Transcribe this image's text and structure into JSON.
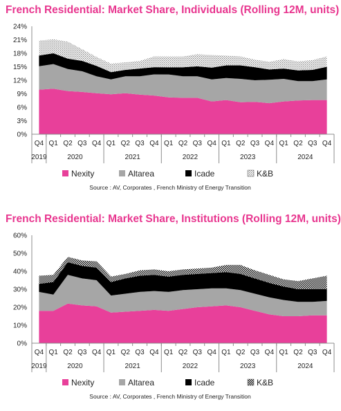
{
  "chart_data": [
    {
      "type": "area",
      "stacked": true,
      "title": "French Residential: Market Share, Individuals (Rolling 12M, units)",
      "quarters": [
        "Q4",
        "Q1",
        "Q2",
        "Q3",
        "Q4",
        "Q1",
        "Q2",
        "Q3",
        "Q4",
        "Q1",
        "Q2",
        "Q3",
        "Q4",
        "Q1",
        "Q2",
        "Q3",
        "Q4",
        "Q1",
        "Q2",
        "Q3",
        "Q4"
      ],
      "years": [
        {
          "label": "2019",
          "span": [
            0,
            0
          ]
        },
        {
          "label": "2020",
          "span": [
            1,
            4
          ]
        },
        {
          "label": "2021",
          "span": [
            5,
            8
          ]
        },
        {
          "label": "2022",
          "span": [
            9,
            12
          ]
        },
        {
          "label": "2023",
          "span": [
            13,
            16
          ]
        },
        {
          "label": "2024",
          "span": [
            17,
            20
          ]
        }
      ],
      "yticks": [
        "0%",
        "3%",
        "6%",
        "9%",
        "12%",
        "15%",
        "18%",
        "21%",
        "24%"
      ],
      "ylim": [
        0,
        24
      ],
      "series": [
        {
          "name": "Nexity",
          "color": "#e8409a",
          "pattern": "solid",
          "values": [
            9.9,
            10.1,
            9.6,
            9.4,
            9.1,
            8.9,
            9.1,
            8.8,
            8.6,
            8.2,
            8.1,
            8.1,
            7.3,
            7.6,
            7.1,
            7.2,
            6.9,
            7.3,
            7.5,
            7.6,
            7.6
          ]
        },
        {
          "name": "Altarea",
          "color": "#a6a6a6",
          "pattern": "solid",
          "values": [
            5.2,
            5.5,
            4.9,
            4.6,
            3.8,
            3.3,
            3.8,
            4.1,
            4.7,
            5.1,
            4.8,
            4.8,
            4.9,
            4.9,
            5.2,
            4.8,
            5.2,
            5.0,
            4.3,
            4.2,
            4.6
          ]
        },
        {
          "name": "Icade",
          "color": "#000000",
          "pattern": "solid",
          "values": [
            2.4,
            2.4,
            2.3,
            2.3,
            2.3,
            1.6,
            1.4,
            1.7,
            1.6,
            1.6,
            2.0,
            2.2,
            2.6,
            2.8,
            3.0,
            2.9,
            2.3,
            2.3,
            2.4,
            2.5,
            2.8
          ]
        },
        {
          "name": "K&B",
          "color": "#d4d4d4",
          "pattern": "dotted",
          "values": [
            3.3,
            3.1,
            3.8,
            2.6,
            2.0,
            1.9,
            1.7,
            1.7,
            2.4,
            2.4,
            2.4,
            2.7,
            2.8,
            2.2,
            2.0,
            1.7,
            1.7,
            2.1,
            2.0,
            2.2,
            2.3
          ]
        }
      ],
      "source": "Source : AV, Corporates , French Ministry of Energy Transition"
    },
    {
      "type": "area",
      "stacked": true,
      "title": "French Residential: Market Share, Institutions (Rolling 12M, units)",
      "quarters": [
        "Q4",
        "Q1",
        "Q2",
        "Q3",
        "Q4",
        "Q1",
        "Q2",
        "Q3",
        "Q4",
        "Q1",
        "Q2",
        "Q3",
        "Q4",
        "Q1",
        "Q2",
        "Q3",
        "Q4",
        "Q1",
        "Q2",
        "Q3",
        "Q4"
      ],
      "years": [
        {
          "label": "2019",
          "span": [
            0,
            0
          ]
        },
        {
          "label": "2020",
          "span": [
            1,
            4
          ]
        },
        {
          "label": "2021",
          "span": [
            5,
            8
          ]
        },
        {
          "label": "2022",
          "span": [
            9,
            12
          ]
        },
        {
          "label": "2023",
          "span": [
            13,
            16
          ]
        },
        {
          "label": "2024",
          "span": [
            17,
            20
          ]
        }
      ],
      "yticks": [
        "0%",
        "10%",
        "20%",
        "30%",
        "40%",
        "50%",
        "60%"
      ],
      "ylim": [
        0,
        60
      ],
      "series": [
        {
          "name": "Nexity",
          "color": "#e8409a",
          "pattern": "solid",
          "values": [
            18,
            18,
            22,
            21,
            20.5,
            17,
            17.5,
            18,
            18.5,
            18,
            19,
            20,
            20.5,
            21,
            20,
            18,
            16,
            15,
            15,
            15.5,
            15.5
          ]
        },
        {
          "name": "Altarea",
          "color": "#a6a6a6",
          "pattern": "solid",
          "values": [
            10.5,
            9,
            16,
            15,
            14.5,
            9.5,
            10,
            10.5,
            10.5,
            10.5,
            10.5,
            10,
            10,
            9.5,
            9.5,
            9.5,
            9.5,
            9,
            8,
            7.5,
            8
          ]
        },
        {
          "name": "Icade",
          "color": "#000000",
          "pattern": "solid",
          "values": [
            4.5,
            7,
            7,
            7,
            7,
            7.5,
            8.5,
            9,
            9,
            8.5,
            8.5,
            8.5,
            8.5,
            9,
            9,
            8.5,
            8,
            7.5,
            7,
            7,
            6.5
          ]
        },
        {
          "name": "K&B",
          "color": "#000000",
          "pattern": "checker",
          "values": [
            4.5,
            4,
            3,
            3,
            3.5,
            3,
            2.5,
            3,
            3,
            3,
            3,
            3,
            3,
            4,
            5,
            4.5,
            4.5,
            4,
            4.5,
            6,
            7.5
          ]
        }
      ],
      "source": "Source : AV, Corporates , French Ministry of Energy Transition"
    }
  ]
}
